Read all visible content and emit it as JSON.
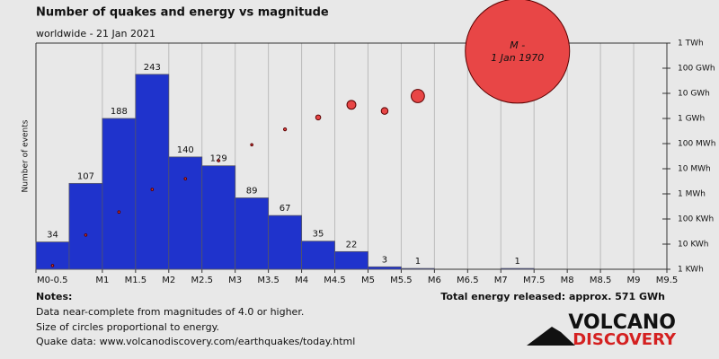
{
  "chart_data": {
    "type": "histogram",
    "title": "Number of quakes and energy vs magnitude",
    "subtitle": "worldwide - 21 Jan 2021",
    "ylabel": "Number of events",
    "bins": [
      0,
      0.5,
      1,
      1.5,
      2,
      2.5,
      3,
      3.5,
      4,
      4.5,
      5,
      5.5,
      6,
      6.5,
      7,
      7.5,
      8,
      8.5,
      9,
      9.5
    ],
    "values": [
      34,
      107,
      188,
      243,
      140,
      129,
      89,
      67,
      35,
      22,
      3,
      1,
      0,
      0,
      1,
      0,
      0,
      0,
      0
    ],
    "color": "#1f33cc",
    "xlim": [
      0,
      9.5
    ],
    "xticks": [
      {
        "value": 0,
        "label": "M0-0.5"
      },
      {
        "value": 1,
        "label": "M1"
      },
      {
        "value": 1.5,
        "label": "M1.5"
      },
      {
        "value": 2,
        "label": "M2"
      },
      {
        "value": 2.5,
        "label": "M2.5"
      },
      {
        "value": 3,
        "label": "M3"
      },
      {
        "value": 3.5,
        "label": "M3.5"
      },
      {
        "value": 4,
        "label": "M4"
      },
      {
        "value": 4.5,
        "label": "M4.5"
      },
      {
        "value": 5,
        "label": "M5"
      },
      {
        "value": 5.5,
        "label": "M5.5"
      },
      {
        "value": 6,
        "label": "M6"
      },
      {
        "value": 6.5,
        "label": "M6.5"
      },
      {
        "value": 7,
        "label": "M7"
      },
      {
        "value": 7.5,
        "label": "M7.5"
      },
      {
        "value": 8,
        "label": "M8"
      },
      {
        "value": 8.5,
        "label": "M8.5"
      },
      {
        "value": 9,
        "label": "M9"
      },
      {
        "value": 9.5,
        "label": "M9.5"
      }
    ],
    "ylim": [
      0,
      282
    ],
    "y2lim": [
      1000,
      1000000000000
    ],
    "y2log": true,
    "y2ticks": [
      {
        "value": 1000,
        "label": "1 KWh"
      },
      {
        "value": 10000,
        "label": "10 KWh"
      },
      {
        "value": 100000,
        "label": "100 KWh"
      },
      {
        "value": 1000000,
        "label": "1 MWh"
      },
      {
        "value": 10000000,
        "label": "10 MWh"
      },
      {
        "value": 100000000,
        "label": "100 MWh"
      },
      {
        "value": 1000000000,
        "label": "1 GWh"
      },
      {
        "value": 10000000000,
        "label": "10 GWh"
      },
      {
        "value": 100000000000,
        "label": "100 GWh"
      },
      {
        "value": 1000000000000,
        "label": "1 TWh"
      }
    ],
    "energy": {
      "axis": "y2",
      "color": "#e84646",
      "values": [
        1400,
        23000,
        190000,
        1500000,
        4000000,
        21000000,
        90000000,
        370000000,
        1100000000,
        3500000000,
        2000000000,
        7800000000,
        null,
        null,
        480000000000,
        null,
        null,
        null,
        null
      ]
    },
    "annotations": [
      "M -",
      "1 Jan 1970"
    ],
    "grid": true
  },
  "total_energy": "Total energy released: approx. 571 GWh",
  "notes": {
    "title": "Notes:",
    "lines": [
      "Data near-complete from magnitudes of 4.0 or higher.",
      "Size of circles proportional to energy.",
      "Quake data: www.volcanodiscovery.com/earthquakes/today.html"
    ]
  },
  "logo": {
    "line1": "VOLCANO",
    "line2": "DISCOVERY"
  }
}
